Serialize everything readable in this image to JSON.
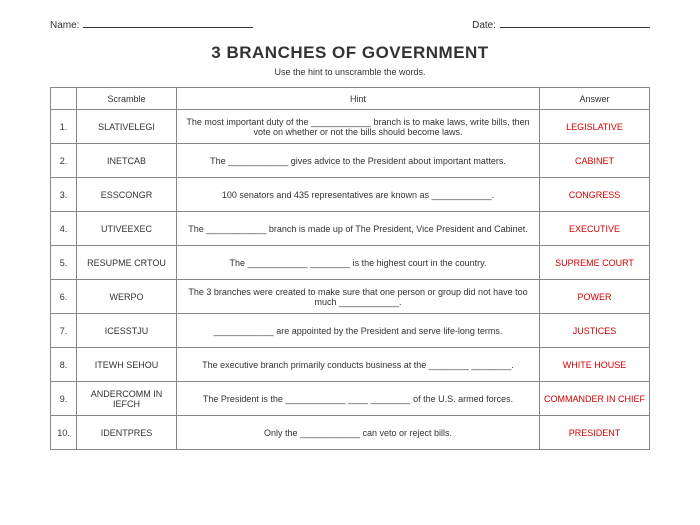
{
  "header": {
    "name_label": "Name:",
    "date_label": "Date:",
    "name_line_width": 170,
    "date_line_width": 150
  },
  "title": "3 BRANCHES OF GOVERNMENT",
  "subtitle": "Use the hint to unscramble the words.",
  "columns": {
    "blank": "",
    "scramble": "Scramble",
    "hint": "Hint",
    "answer": "Answer"
  },
  "rows": [
    {
      "n": "1.",
      "scramble": "SLATIVELEGI",
      "hint": "The most important duty of the ____________ branch is to make laws, write bills, then vote on whether or not the bills should become laws.",
      "answer": "LEGISLATIVE"
    },
    {
      "n": "2.",
      "scramble": "INETCAB",
      "hint": "The ____________ gives advice to the President about important matters.",
      "answer": "CABINET"
    },
    {
      "n": "3.",
      "scramble": "ESSCONGR",
      "hint": "100 senators and 435 representatives are known as ____________.",
      "answer": "CONGRESS"
    },
    {
      "n": "4.",
      "scramble": "UTIVEEXEC",
      "hint": "The ____________ branch is made up of The President, Vice President and Cabinet.",
      "answer": "EXECUTIVE"
    },
    {
      "n": "5.",
      "scramble": "RESUPME CRTOU",
      "hint": "The ____________ ________ is the highest court in the country.",
      "answer": "SUPREME COURT"
    },
    {
      "n": "6.",
      "scramble": "WERPO",
      "hint": "The 3 branches were created to make sure that one person or group did not have too much ____________.",
      "answer": "POWER"
    },
    {
      "n": "7.",
      "scramble": "ICESSTJU",
      "hint": "____________ are appointed by the President and serve life-long terms.",
      "answer": "JUSTICES"
    },
    {
      "n": "8.",
      "scramble": "ITEWH SEHOU",
      "hint": "The executive branch primarily conducts business at the ________ ________.",
      "answer": "WHITE HOUSE"
    },
    {
      "n": "9.",
      "scramble": "ANDERCOMM IN IEFCH",
      "hint": "The President is the ____________ ____ ________ of the U.S. armed forces.",
      "answer": "COMMANDER IN CHIEF"
    },
    {
      "n": "10.",
      "scramble": "IDENTPRES",
      "hint": "Only the ____________ can veto or reject bills.",
      "answer": "PRESIDENT"
    }
  ]
}
